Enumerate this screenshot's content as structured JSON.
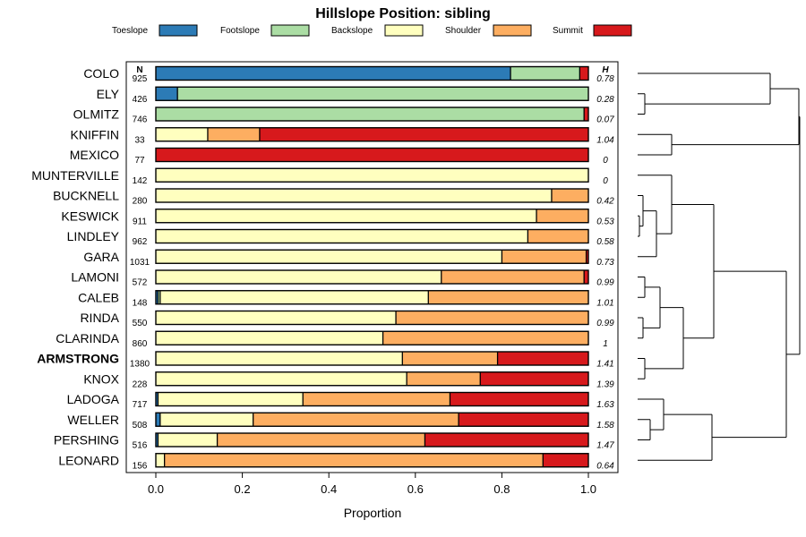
{
  "chart_data": {
    "type": "stacked-bar-horizontal",
    "title": "Hillslope Position: sibling",
    "xlabel": "Proportion",
    "xlim": [
      0,
      1
    ],
    "xticks": [
      "0.0",
      "0.2",
      "0.4",
      "0.6",
      "0.8",
      "1.0"
    ],
    "xtick_values": [
      0,
      0.2,
      0.4,
      0.6,
      0.8,
      1.0
    ],
    "n_header": "N",
    "h_header": "H",
    "legend": [
      {
        "name": "Toeslope",
        "color": "#2c7bb6"
      },
      {
        "name": "Footslope",
        "color": "#abdda4"
      },
      {
        "name": "Backslope",
        "color": "#ffffbf"
      },
      {
        "name": "Shoulder",
        "color": "#fdae61"
      },
      {
        "name": "Summit",
        "color": "#d7191c"
      }
    ],
    "rows": [
      {
        "name": "COLO",
        "n": "925",
        "h": "0.78",
        "values": [
          0.82,
          0.16,
          0,
          0,
          0.02
        ],
        "bold": false
      },
      {
        "name": "ELY",
        "n": "426",
        "h": "0.28",
        "values": [
          0.05,
          0.95,
          0,
          0,
          0
        ],
        "bold": false
      },
      {
        "name": "OLMITZ",
        "n": "746",
        "h": "0.07",
        "values": [
          0,
          0.99,
          0,
          0,
          0.01
        ],
        "bold": false
      },
      {
        "name": "KNIFFIN",
        "n": "33",
        "h": "1.04",
        "values": [
          0,
          0,
          0.12,
          0.12,
          0.76
        ],
        "bold": false
      },
      {
        "name": "MEXICO",
        "n": "77",
        "h": "0",
        "values": [
          0,
          0,
          0,
          0,
          1.0
        ],
        "bold": false
      },
      {
        "name": "MUNTERVILLE",
        "n": "142",
        "h": "0",
        "values": [
          0,
          0,
          1.0,
          0,
          0
        ],
        "bold": false
      },
      {
        "name": "BUCKNELL",
        "n": "280",
        "h": "0.42",
        "values": [
          0,
          0,
          0.915,
          0.085,
          0
        ],
        "bold": false
      },
      {
        "name": "KESWICK",
        "n": "911",
        "h": "0.53",
        "values": [
          0,
          0,
          0.88,
          0.12,
          0
        ],
        "bold": false
      },
      {
        "name": "LINDLEY",
        "n": "962",
        "h": "0.58",
        "values": [
          0,
          0,
          0.86,
          0.14,
          0
        ],
        "bold": false
      },
      {
        "name": "GARA",
        "n": "1031",
        "h": "0.73",
        "values": [
          0,
          0,
          0.8,
          0.195,
          0.005
        ],
        "bold": false
      },
      {
        "name": "LAMONI",
        "n": "572",
        "h": "0.99",
        "values": [
          0,
          0,
          0.66,
          0.33,
          0.01
        ],
        "bold": false
      },
      {
        "name": "CALEB",
        "n": "148",
        "h": "1.01",
        "values": [
          0.005,
          0.005,
          0.62,
          0.37,
          0
        ],
        "bold": false
      },
      {
        "name": "RINDA",
        "n": "550",
        "h": "0.99",
        "values": [
          0,
          0,
          0.555,
          0.445,
          0
        ],
        "bold": false
      },
      {
        "name": "CLARINDA",
        "n": "860",
        "h": "1",
        "values": [
          0,
          0,
          0.525,
          0.475,
          0
        ],
        "bold": false
      },
      {
        "name": "ARMSTRONG",
        "n": "1380",
        "h": "1.41",
        "values": [
          0,
          0,
          0.57,
          0.22,
          0.21
        ],
        "bold": true
      },
      {
        "name": "KNOX",
        "n": "228",
        "h": "1.39",
        "values": [
          0,
          0,
          0.58,
          0.17,
          0.25
        ],
        "bold": false
      },
      {
        "name": "LADOGA",
        "n": "717",
        "h": "1.63",
        "values": [
          0.005,
          0,
          0.335,
          0.34,
          0.32
        ],
        "bold": false
      },
      {
        "name": "WELLER",
        "n": "508",
        "h": "1.58",
        "values": [
          0.01,
          0,
          0.215,
          0.475,
          0.3
        ],
        "bold": false
      },
      {
        "name": "PERSHING",
        "n": "516",
        "h": "1.47",
        "values": [
          0.005,
          0,
          0.137,
          0.48,
          0.378
        ],
        "bold": false
      },
      {
        "name": "LEONARD",
        "n": "156",
        "h": "0.64",
        "values": [
          0,
          0,
          0.02,
          0.875,
          0.105
        ],
        "bold": false
      }
    ],
    "dendrogram": {
      "groups": [
        [
          "COLO",
          "ELY",
          "OLMITZ"
        ],
        [
          "KNIFFIN",
          "MEXICO"
        ],
        [
          "MUNTERVILLE",
          "BUCKNELL",
          "KESWICK",
          "LINDLEY",
          "GARA",
          "LAMONI",
          "CALEB",
          "RINDA",
          "CLARINDA",
          "ARMSTRONG",
          "KNOX"
        ],
        [
          "LADOGA",
          "WELLER",
          "PERSHING",
          "LEONARD"
        ]
      ]
    }
  }
}
